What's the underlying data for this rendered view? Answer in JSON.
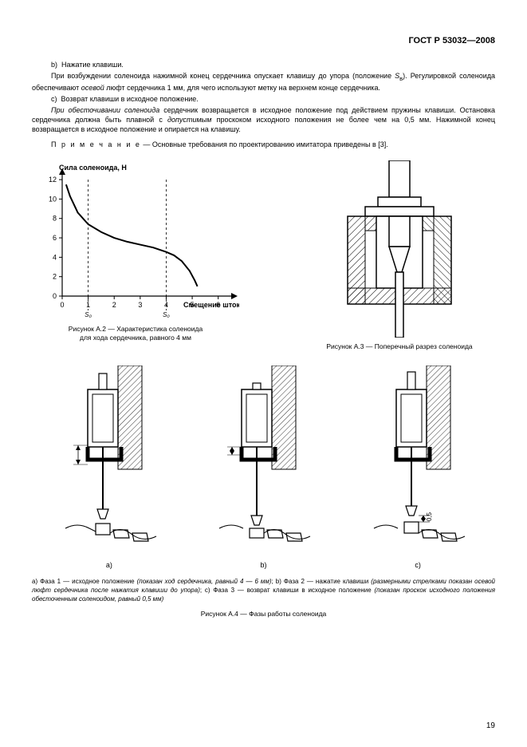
{
  "header": "ГОСТ Р 53032—2008",
  "body": {
    "p1": "b)  Нажатие клавиши.",
    "p2a": "При возбуждении соленоида нажимной конец сердечника опускает клавишу до упора (положение ",
    "p2s": "S",
    "p2sub": "в",
    "p2b": "). Регулировкой соленоида обеспечивают ",
    "p2c": "осевой",
    "p2d": " люфт сердечника 1 мм, для чего используют метку на верхнем конце сердечника.",
    "p3": "c)  Возврат клавиши в исходное положение.",
    "p4a": "При обесточивании соленоида",
    "p4b": " сердечник возвращается в исходное положение под действием пружины клавиши. Остановка сердечника должна быть плавной с ",
    "p4c": "допустимым",
    "p4d": " проскоком исходного положения не более чем на 0,5 мм. Нажимной конец возвращается в исходное положение и опирается на клавишу.",
    "note_label": "П р и м е ч а н и е",
    "note": " — Основные требования по проектированию имитатора приведены в [3]."
  },
  "chart": {
    "y_title": "Сила соленоида, Н",
    "x_title": "Смещение штока, мм",
    "y_ticks": [
      "0",
      "2",
      "4",
      "6",
      "8",
      "10",
      "12"
    ],
    "y_tick_vals": [
      0,
      2,
      4,
      6,
      8,
      10,
      12
    ],
    "x_ticks": [
      "0",
      "1",
      "2",
      "3",
      "4",
      "5",
      "6"
    ],
    "x_tick_vals": [
      0,
      1,
      2,
      3,
      4,
      5,
      6
    ],
    "xlim": [
      0,
      6.5
    ],
    "ylim": [
      0,
      12.5
    ],
    "x_dash1": 1,
    "x_dash2": 4,
    "dash_label1": "S₀",
    "dash_label2": "S₀",
    "curve": [
      [
        0.15,
        11.5
      ],
      [
        0.3,
        10.3
      ],
      [
        0.6,
        8.6
      ],
      [
        1.0,
        7.4
      ],
      [
        1.5,
        6.6
      ],
      [
        2.0,
        6.0
      ],
      [
        2.5,
        5.6
      ],
      [
        3.0,
        5.3
      ],
      [
        3.5,
        5.0
      ],
      [
        4.0,
        4.55
      ],
      [
        4.3,
        4.2
      ],
      [
        4.6,
        3.6
      ],
      [
        4.9,
        2.6
      ],
      [
        5.1,
        1.6
      ],
      [
        5.2,
        1.0
      ]
    ],
    "stroke": "#000000",
    "background": "#ffffff"
  },
  "captions": {
    "a2_l1": "Рисунок А.2 — Характеристика соленоида",
    "a2_l2": "для хода сердечника, равного 4 мм",
    "a3": "Рисунок А.3 — Поперечный разрез соленоида",
    "a4": "Рисунок А.4 — Фазы работы соленоида"
  },
  "phases": {
    "a": "a)",
    "b": "b)",
    "c": "c)",
    "dim_c": "0,5"
  },
  "footnote": {
    "t1": "a) Фаза 1 — исходное положение ",
    "t2": "(показан ход сердечника, равный 4 — 6 мм)",
    "t3": "; b) Фаза 2 — нажатие клавиши ",
    "t4": "(размерными стрелками показан осевой люфт сердечника после нажатия клавиши до упора)",
    "t5": "; c) Фаза 3 — возврат клавиши в исходное положение ",
    "t6": "(показан проскок исходного положения обесточенным соленоидом, равный 0,5 мм)"
  },
  "pagenum": "19"
}
